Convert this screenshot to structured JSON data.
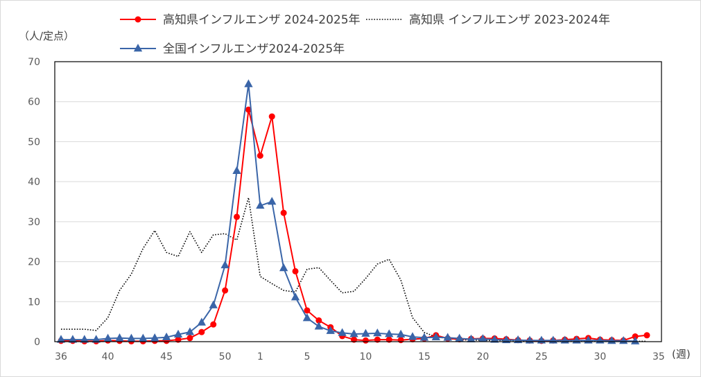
{
  "chart_data": {
    "type": "line",
    "y_unit_label": "（人/定点）",
    "x_unit_label": "(週)",
    "ylim": [
      0,
      70
    ],
    "yticks": [
      0,
      10,
      20,
      30,
      40,
      50,
      60,
      70
    ],
    "grid": true,
    "legend_position": "top",
    "weeks": [
      36,
      37,
      38,
      39,
      40,
      41,
      42,
      43,
      44,
      45,
      46,
      47,
      48,
      49,
      50,
      51,
      52,
      1,
      2,
      3,
      4,
      5,
      6,
      7,
      8,
      9,
      10,
      11,
      12,
      13,
      14,
      15,
      16,
      17,
      18,
      19,
      20,
      21,
      22,
      23,
      24,
      25,
      26,
      27,
      28,
      29,
      30,
      31,
      32,
      33,
      34,
      35
    ],
    "xtick_labels": [
      {
        "week_index": 0,
        "label": "36"
      },
      {
        "week_index": 4,
        "label": "40"
      },
      {
        "week_index": 9,
        "label": "45"
      },
      {
        "week_index": 14,
        "label": "50"
      },
      {
        "week_index": 17,
        "label": "1"
      },
      {
        "week_index": 21,
        "label": "5"
      },
      {
        "week_index": 26,
        "label": "10"
      },
      {
        "week_index": 31,
        "label": "15"
      },
      {
        "week_index": 36,
        "label": "20"
      },
      {
        "week_index": 41,
        "label": "25"
      },
      {
        "week_index": 46,
        "label": "30"
      },
      {
        "week_index": 51,
        "label": "35"
      }
    ],
    "series": [
      {
        "name": "高知県インフルエンザ 2024-2025年",
        "color": "#ff0000",
        "marker": "circle",
        "line_style": "solid",
        "values": [
          0.2,
          0.2,
          0.1,
          0.1,
          0.3,
          0.2,
          0.1,
          0.1,
          0.2,
          0.2,
          0.5,
          0.9,
          2.4,
          4.3,
          12.8,
          31.2,
          58.0,
          46.5,
          56.3,
          32.2,
          17.6,
          7.8,
          5.3,
          3.6,
          1.4,
          0.5,
          0.3,
          0.5,
          0.5,
          0.4,
          0.6,
          0.8,
          1.6,
          0.8,
          0.6,
          0.7,
          0.8,
          0.8,
          0.6,
          0.4,
          0.3,
          0.2,
          0.3,
          0.5,
          0.7,
          0.9,
          0.5,
          0.4,
          0.3,
          1.3,
          1.6,
          null
        ]
      },
      {
        "name": "高知県 インフルエンザ 2023-2024年",
        "color": "#000000",
        "marker": "none",
        "line_style": "dotted",
        "values": [
          3.1,
          3.1,
          3.1,
          2.8,
          6.0,
          12.8,
          16.9,
          23.3,
          27.8,
          22.3,
          21.3,
          27.5,
          22.3,
          26.7,
          27.0,
          25.4,
          36.0,
          16.3,
          14.5,
          12.8,
          12.4,
          18.1,
          18.5,
          15.3,
          12.2,
          12.6,
          15.8,
          19.4,
          20.6,
          15.4,
          6.0,
          2.3,
          1.2,
          0.8,
          0.5,
          0.4,
          0.3,
          0.3,
          0.3,
          0.2,
          0.2,
          0.1,
          0.1,
          0.2,
          0.2,
          0.2,
          0.2,
          0.1,
          0.1,
          0.1,
          0.1,
          null
        ]
      },
      {
        "name": "全国インフルエンザ2024-2025年",
        "color": "#3a65a8",
        "marker": "triangle",
        "line_style": "solid",
        "values": [
          0.5,
          0.5,
          0.5,
          0.5,
          0.8,
          0.9,
          0.8,
          0.8,
          0.9,
          1.1,
          1.8,
          2.4,
          4.8,
          9.1,
          19.1,
          42.7,
          64.4,
          34.0,
          35.0,
          18.4,
          11.1,
          5.9,
          3.8,
          2.7,
          2.2,
          1.9,
          2.0,
          2.1,
          1.9,
          1.8,
          1.2,
          1.0,
          1.1,
          1.0,
          0.8,
          0.6,
          0.7,
          0.5,
          0.4,
          0.4,
          0.3,
          0.3,
          0.3,
          0.3,
          0.3,
          0.3,
          0.3,
          0.2,
          0.2,
          0.1,
          null,
          null
        ]
      }
    ]
  }
}
